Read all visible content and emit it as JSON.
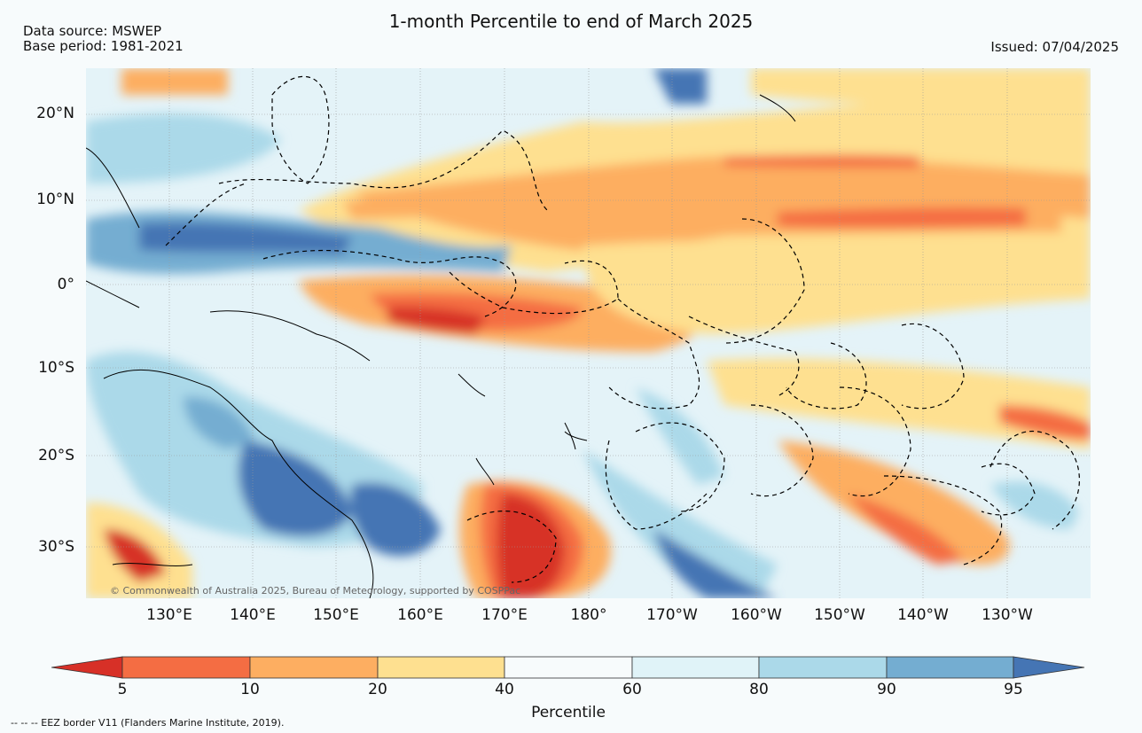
{
  "header": {
    "title": "1-month Percentile to end of March 2025",
    "source_line": "Data source: MSWEP",
    "base_period_line": "Base period: 1981-2021",
    "issued": "Issued: 07/04/2025"
  },
  "map": {
    "region": "Western and Central Pacific",
    "copyright": "© Commonwealth of Australia 2025, Bureau of Meteorology, supported by COSPPac",
    "lat_labels": [
      "20°N",
      "10°N",
      "0°",
      "10°S",
      "20°S",
      "30°S"
    ],
    "lon_labels": [
      "130°E",
      "140°E",
      "150°E",
      "160°E",
      "170°E",
      "180°",
      "170°W",
      "160°W",
      "150°W",
      "140°W",
      "130°W"
    ],
    "colors": {
      "below_5": "#d73027",
      "p5_10": "#f46d43",
      "p10_20": "#fdae61",
      "p20_40": "#fee090",
      "p40_60": "#f7fbfc",
      "p60_80": "#e0f3f8",
      "p80_90": "#abd9e9",
      "p90_95": "#74add1",
      "above_95": "#4575b4"
    }
  },
  "colorbar": {
    "title": "Percentile",
    "ticks": [
      "5",
      "10",
      "20",
      "40",
      "60",
      "80",
      "90",
      "95"
    ],
    "bins": [
      {
        "range": "5-10",
        "color": "#f46d43"
      },
      {
        "range": "10-20",
        "color": "#fdae61"
      },
      {
        "range": "20-40",
        "color": "#fee090"
      },
      {
        "range": "40-60",
        "color": "#f7fbfc"
      },
      {
        "range": "60-80",
        "color": "#e0f3f8"
      },
      {
        "range": "80-90",
        "color": "#abd9e9"
      },
      {
        "range": "90-95",
        "color": "#74add1"
      }
    ],
    "low_extension_color": "#d73027",
    "high_extension_color": "#4575b4"
  },
  "footer": {
    "eez_legend": "-- -- -- EEZ border V11 (Flanders Marine Institute, 2019)."
  }
}
